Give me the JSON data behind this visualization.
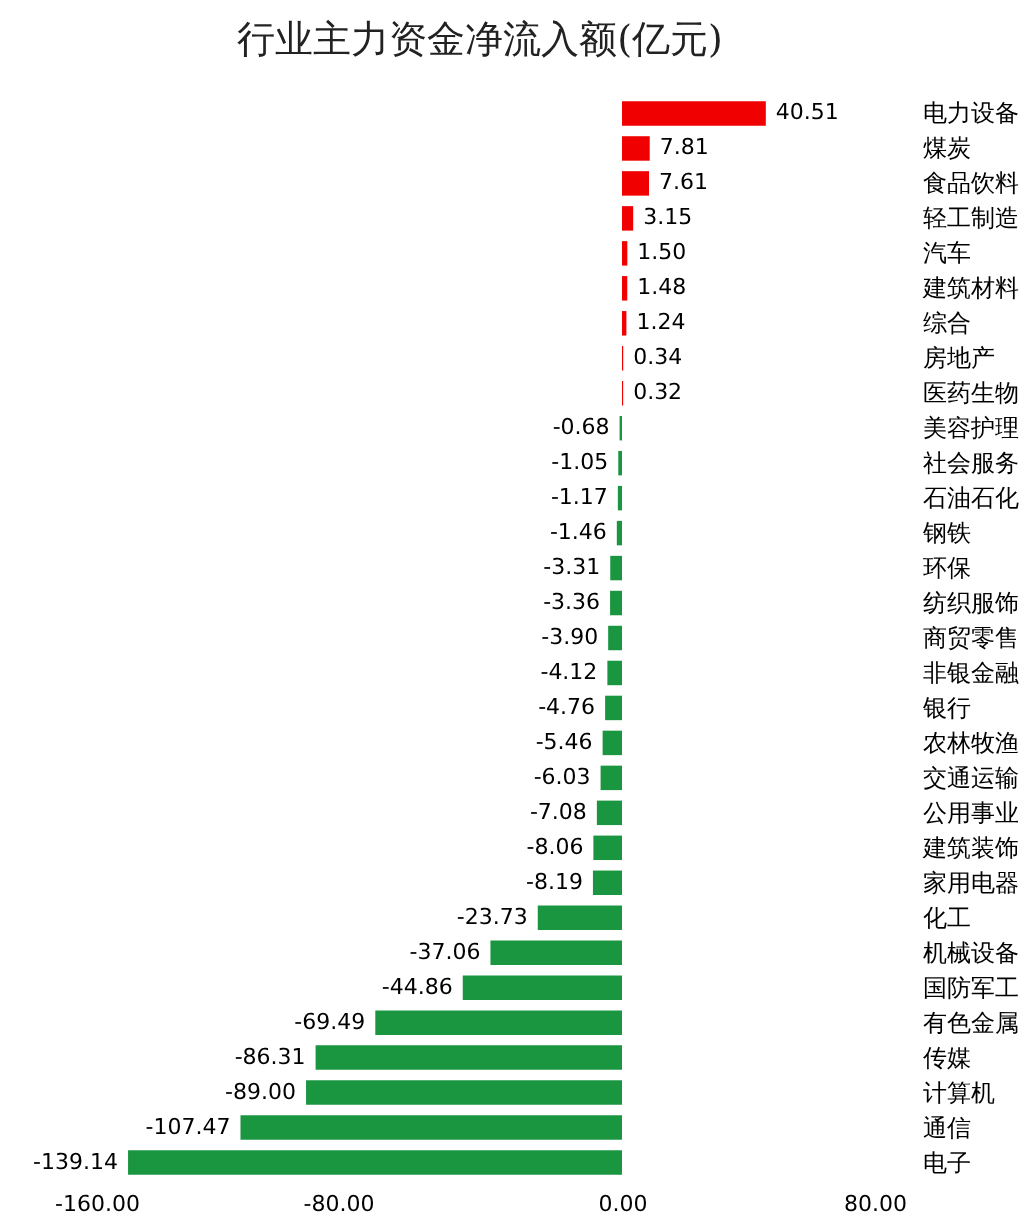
{
  "chart_data": {
    "type": "bar",
    "orientation": "horizontal",
    "title": "行业主力资金净流入额(亿元)",
    "categories": [
      "电力设备",
      "煤炭",
      "食品饮料",
      "轻工制造",
      "汽车",
      "建筑材料",
      "综合",
      "房地产",
      "医药生物",
      "美容护理",
      "社会服务",
      "石油石化",
      "钢铁",
      "环保",
      "纺织服饰",
      "商贸零售",
      "非银金融",
      "银行",
      "农林牧渔",
      "交通运输",
      "公用事业",
      "建筑装饰",
      "家用电器",
      "化工",
      "机械设备",
      "国防军工",
      "有色金属",
      "传媒",
      "计算机",
      "通信",
      "电子"
    ],
    "values": [
      40.51,
      7.81,
      7.61,
      3.15,
      1.5,
      1.48,
      1.24,
      0.34,
      0.32,
      -0.68,
      -1.05,
      -1.17,
      -1.46,
      -3.31,
      -3.36,
      -3.9,
      -4.12,
      -4.76,
      -5.46,
      -6.03,
      -7.08,
      -8.06,
      -8.19,
      -23.73,
      -37.06,
      -44.86,
      -69.49,
      -86.31,
      -89.0,
      -107.47,
      -139.14
    ],
    "colors": [
      "#f00000",
      "#f00000",
      "#f00000",
      "#f00000",
      "#f00000",
      "#f00000",
      "#f00000",
      "#f00000",
      "#f00000",
      "#1a9641",
      "#1a9641",
      "#1a9641",
      "#1a9641",
      "#1a9641",
      "#1a9641",
      "#1a9641",
      "#1a9641",
      "#1a9641",
      "#1a9641",
      "#1a9641",
      "#1a9641",
      "#1a9641",
      "#1a9641",
      "#1a9641",
      "#1a9641",
      "#1a9641",
      "#1a9641",
      "#1a9641",
      "#1a9641",
      "#1a9641",
      "#1a9641"
    ],
    "xlim": [
      -160,
      80
    ],
    "xticks": [
      {
        "value": -160,
        "label": "-160.00"
      },
      {
        "value": -80,
        "label": "-80.00"
      },
      {
        "value": 0,
        "label": "0.00"
      },
      {
        "value": 80,
        "label": "80.00"
      }
    ],
    "value_labels": [
      "40.51",
      "7.81",
      "7.61",
      "3.15",
      "1.50",
      "1.48",
      "1.24",
      "0.34",
      "0.32",
      "-0.68",
      "-1.05",
      "-1.17",
      "-1.46",
      "-3.31",
      "-3.36",
      "-3.90",
      "-4.12",
      "-4.76",
      "-5.46",
      "-6.03",
      "-7.08",
      "-8.06",
      "-8.19",
      "-23.73",
      "-37.06",
      "-44.86",
      "-69.49",
      "-86.31",
      "-89.00",
      "-107.47",
      "-139.14"
    ],
    "grid": false
  }
}
